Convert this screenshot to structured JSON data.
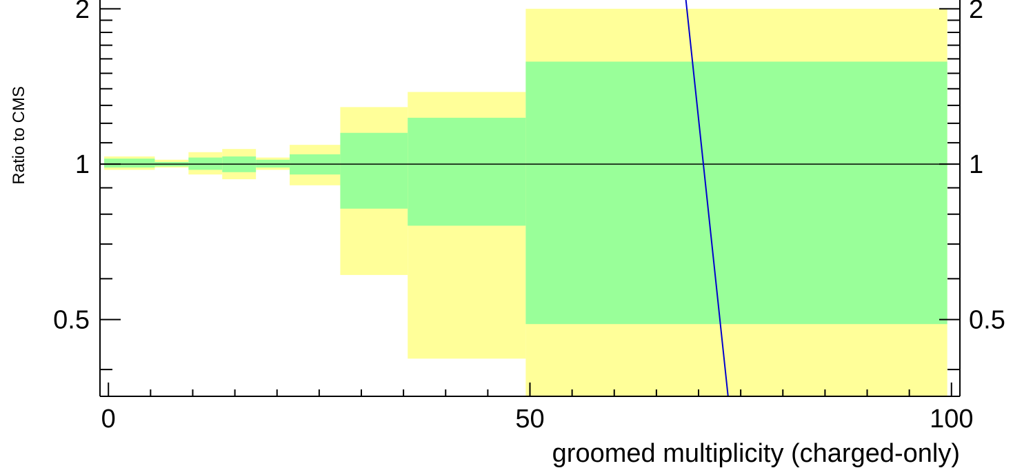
{
  "chart_data": {
    "type": "ratio-band",
    "xlabel": "groomed multiplicity (charged-only)",
    "ylabel": "Ratio to CMS",
    "xlim": [
      -1,
      101
    ],
    "ylim": [
      0.355,
      2.08
    ],
    "y_scale": "log",
    "x_ticks": [
      "0",
      "50",
      "100"
    ],
    "y_ticks": [
      "0.5",
      "1",
      "2"
    ],
    "reference_line": 1,
    "colors": {
      "outer_band": "#ffff99",
      "inner_band": "#99ff99",
      "reference_line": "#000000",
      "curve": "#0000cc"
    },
    "bins": [
      {
        "x": [
          -0.5,
          5.5
        ],
        "outer": [
          0.975,
          1.035
        ],
        "inner": [
          0.985,
          1.025
        ]
      },
      {
        "x": [
          5.5,
          9.5
        ],
        "outer": [
          0.985,
          1.02
        ],
        "inner": [
          0.99,
          1.01
        ]
      },
      {
        "x": [
          9.5,
          13.5
        ],
        "outer": [
          0.955,
          1.055
        ],
        "inner": [
          0.975,
          1.03
        ]
      },
      {
        "x": [
          13.5,
          17.5
        ],
        "outer": [
          0.935,
          1.07
        ],
        "inner": [
          0.965,
          1.035
        ]
      },
      {
        "x": [
          17.5,
          21.5
        ],
        "outer": [
          0.975,
          1.03
        ],
        "inner": [
          0.985,
          1.02
        ]
      },
      {
        "x": [
          21.5,
          27.5
        ],
        "outer": [
          0.91,
          1.09
        ],
        "inner": [
          0.955,
          1.045
        ]
      },
      {
        "x": [
          27.5,
          35.5
        ],
        "outer": [
          0.61,
          1.29
        ],
        "inner": [
          0.82,
          1.15
        ]
      },
      {
        "x": [
          35.5,
          49.5
        ],
        "outer": [
          0.42,
          1.38
        ],
        "inner": [
          0.76,
          1.23
        ]
      },
      {
        "x": [
          49.5,
          99.5
        ],
        "outer": [
          0.35,
          2.0
        ],
        "inner": [
          0.49,
          1.58
        ]
      }
    ],
    "curve": {
      "x": [
        68.5,
        73.5
      ],
      "y": [
        2.08,
        0.355
      ]
    }
  }
}
